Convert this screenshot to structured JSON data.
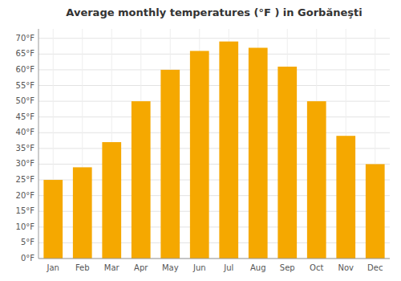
{
  "chart_data": {
    "type": "bar",
    "title": "Average monthly temperatures (°F ) in Gorbăneşti",
    "categories": [
      "Jan",
      "Feb",
      "Mar",
      "Apr",
      "May",
      "Jun",
      "Jul",
      "Aug",
      "Sep",
      "Oct",
      "Nov",
      "Dec"
    ],
    "values": [
      25,
      29,
      37,
      50,
      60,
      66,
      69,
      67,
      61,
      50,
      39,
      30
    ],
    "color": "#F5A800",
    "ylim": [
      0,
      73
    ],
    "yticks": [
      {
        "value": 0,
        "label": "0°F"
      },
      {
        "value": 5,
        "label": "5°F"
      },
      {
        "value": 10,
        "label": "10°F"
      },
      {
        "value": 15,
        "label": "15°F"
      },
      {
        "value": 20,
        "label": "20°F"
      },
      {
        "value": 25,
        "label": "25°F"
      },
      {
        "value": 30,
        "label": "30°F"
      },
      {
        "value": 35,
        "label": "35°F"
      },
      {
        "value": 40,
        "label": "40°F"
      },
      {
        "value": 45,
        "label": "45°F"
      },
      {
        "value": 50,
        "label": "50°F"
      },
      {
        "value": 55,
        "label": "55°F"
      },
      {
        "value": 60,
        "label": "60°F"
      },
      {
        "value": 65,
        "label": "65°F"
      },
      {
        "value": 70,
        "label": "70°F"
      }
    ],
    "grid": true
  }
}
